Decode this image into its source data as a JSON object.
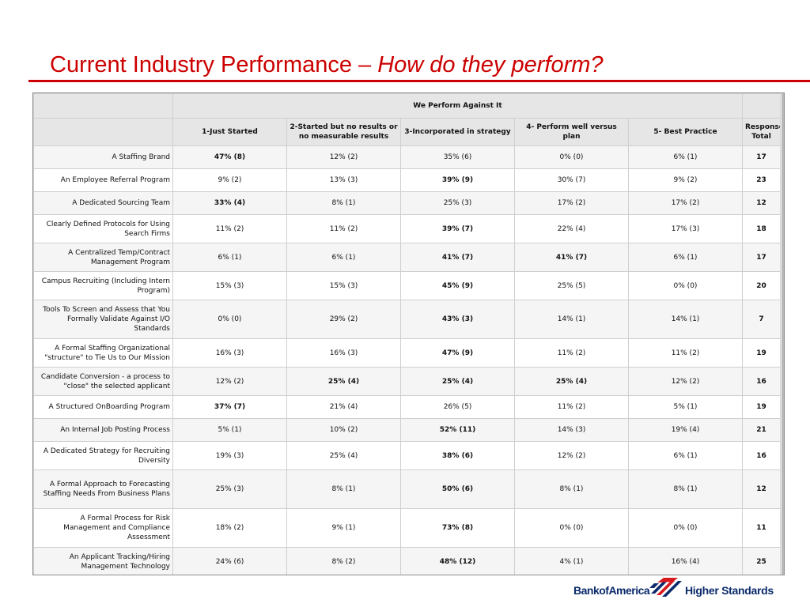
{
  "title": {
    "main": "Current Industry Performance – ",
    "sub": "How do  they perform?"
  },
  "table": {
    "group_header": "We Perform Against It",
    "columns": [
      "1-Just Started",
      "2-Started but no results or no measurable results",
      "3-Incorporated in strategy",
      "4- Perform well versus plan",
      "5- Best Practice",
      "Response Total"
    ],
    "rows": [
      {
        "label": "A Staffing Brand",
        "cells": [
          "47% (8)",
          "12% (2)",
          "35% (6)",
          "0% (0)",
          "6% (1)"
        ],
        "total": "17",
        "bold": [
          0
        ]
      },
      {
        "label": "An Employee Referral Program",
        "cells": [
          "9% (2)",
          "13% (3)",
          "39% (9)",
          "30% (7)",
          "9% (2)"
        ],
        "total": "23",
        "bold": [
          2
        ]
      },
      {
        "label": "A Dedicated Sourcing Team",
        "cells": [
          "33% (4)",
          "8% (1)",
          "25% (3)",
          "17% (2)",
          "17% (2)"
        ],
        "total": "12",
        "bold": [
          0
        ]
      },
      {
        "label": "Clearly Defined Protocols for Using Search Firms",
        "cells": [
          "11% (2)",
          "11% (2)",
          "39% (7)",
          "22% (4)",
          "17% (3)"
        ],
        "total": "18",
        "bold": [
          2
        ]
      },
      {
        "label": "A Centralized Temp/Contract Management Program",
        "cells": [
          "6% (1)",
          "6% (1)",
          "41% (7)",
          "41% (7)",
          "6% (1)"
        ],
        "total": "17",
        "bold": [
          2,
          3
        ]
      },
      {
        "label": "Campus Recruiting (Including Intern Program)",
        "cells": [
          "15% (3)",
          "15% (3)",
          "45% (9)",
          "25% (5)",
          "0% (0)"
        ],
        "total": "20",
        "bold": [
          2
        ]
      },
      {
        "label": "Tools To Screen and Assess that You Formally Validate Against I/O Standards",
        "cells": [
          "0% (0)",
          "29% (2)",
          "43% (3)",
          "14% (1)",
          "14% (1)"
        ],
        "total": "7",
        "bold": [
          2
        ]
      },
      {
        "label": "A Formal Staffing Organizational \"structure\" to Tie Us to Our Mission",
        "cells": [
          "16% (3)",
          "16% (3)",
          "47% (9)",
          "11% (2)",
          "11% (2)"
        ],
        "total": "19",
        "bold": [
          2
        ]
      },
      {
        "label": "Candidate Conversion - a process to \"close\" the selected applicant",
        "cells": [
          "12% (2)",
          "25% (4)",
          "25% (4)",
          "25% (4)",
          "12% (2)"
        ],
        "total": "16",
        "bold": [
          1,
          2,
          3
        ]
      },
      {
        "label": "A Structured OnBoarding Program",
        "cells": [
          "37% (7)",
          "21% (4)",
          "26% (5)",
          "11% (2)",
          "5% (1)"
        ],
        "total": "19",
        "bold": [
          0
        ]
      },
      {
        "label": "An Internal Job Posting Process",
        "cells": [
          "5% (1)",
          "10% (2)",
          "52% (11)",
          "14% (3)",
          "19% (4)"
        ],
        "total": "21",
        "bold": [
          2
        ]
      },
      {
        "label": "A Dedicated Strategy for Recruiting Diversity",
        "cells": [
          "19% (3)",
          "25% (4)",
          "38% (6)",
          "12% (2)",
          "6% (1)"
        ],
        "total": "16",
        "bold": [
          2
        ]
      },
      {
        "label": "A Formal Approach to Forecasting Staffing Needs From Business Plans",
        "cells": [
          "25% (3)",
          "8% (1)",
          "50% (6)",
          "8% (1)",
          "8% (1)"
        ],
        "total": "12",
        "bold": [
          2
        ]
      },
      {
        "label": "A Formal Process for Risk Management and Compliance Assessment",
        "cells": [
          "18% (2)",
          "9% (1)",
          "73% (8)",
          "0% (0)",
          "0% (0)"
        ],
        "total": "11",
        "bold": [
          2
        ]
      },
      {
        "label": "An Applicant Tracking/Hiring Management Technology",
        "cells": [
          "24% (6)",
          "8% (2)",
          "48% (12)",
          "4% (1)",
          "16% (4)"
        ],
        "total": "25",
        "bold": [
          2
        ]
      }
    ]
  },
  "logo": {
    "brand": "BankofAmerica",
    "tagline": "Higher Standards",
    "colors": {
      "navy": "#0b2a6b",
      "red": "#d7191f"
    }
  },
  "colors": {
    "title": "#cc0000",
    "header_bg": "#e6e6e6"
  }
}
